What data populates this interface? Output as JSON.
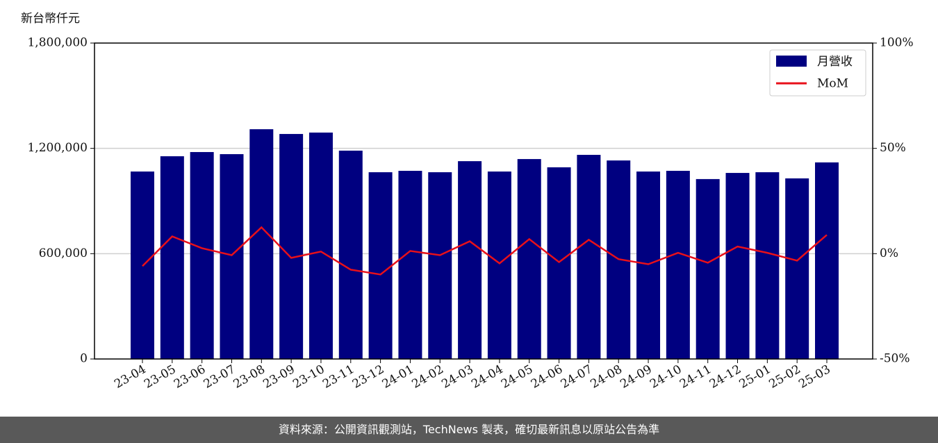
{
  "chart_data": {
    "type": "bar_line",
    "y_unit_label": "新台幣仟元",
    "categories": [
      "23-04",
      "23-05",
      "23-06",
      "23-07",
      "23-08",
      "23-09",
      "23-10",
      "23-11",
      "23-12",
      "24-01",
      "24-02",
      "24-03",
      "24-04",
      "24-05",
      "24-06",
      "24-07",
      "24-08",
      "24-09",
      "24-10",
      "24-11",
      "24-12",
      "25-01",
      "25-02",
      "25-03"
    ],
    "series": [
      {
        "name": "月營收",
        "color": "#000080",
        "values": [
          1068000,
          1155000,
          1179000,
          1167000,
          1309000,
          1282000,
          1290000,
          1187000,
          1064000,
          1072000,
          1064000,
          1127000,
          1068000,
          1139000,
          1092000,
          1163000,
          1131000,
          1068000,
          1072000,
          1025000,
          1060000,
          1064000,
          1029000,
          1120000
        ]
      },
      {
        "name": "MoM",
        "color": "#e8101a",
        "axis": "y2",
        "values": [
          -5.9,
          8.2,
          2.6,
          -0.7,
          12.5,
          -2,
          1,
          -7.6,
          -9.9,
          1.3,
          -0.7,
          5.9,
          -4.6,
          6.9,
          -4,
          6.6,
          -2.6,
          -5,
          0.4,
          -4.3,
          3.4,
          0.4,
          -3.3,
          8.9
        ]
      }
    ],
    "ylim": [
      0,
      1800000
    ],
    "yticks": [
      0,
      {
        "value": 600000,
        "label": "600,000"
      },
      {
        "value": 1200000,
        "label": "1,200,000"
      },
      {
        "value": 1800000,
        "label": "1,800,000"
      }
    ],
    "y2lim": [
      -50,
      100
    ],
    "y2ticks": [
      {
        "value": -50,
        "label": "-50%"
      },
      {
        "value": 0,
        "label": "0%"
      },
      {
        "value": 50,
        "label": "50%"
      },
      {
        "value": 100,
        "label": "100%"
      }
    ],
    "grid": true,
    "legend": "upper right"
  },
  "footer": "資料來源：公開資訊觀測站，TechNews 製表，確切最新訊息以原站公告為準"
}
